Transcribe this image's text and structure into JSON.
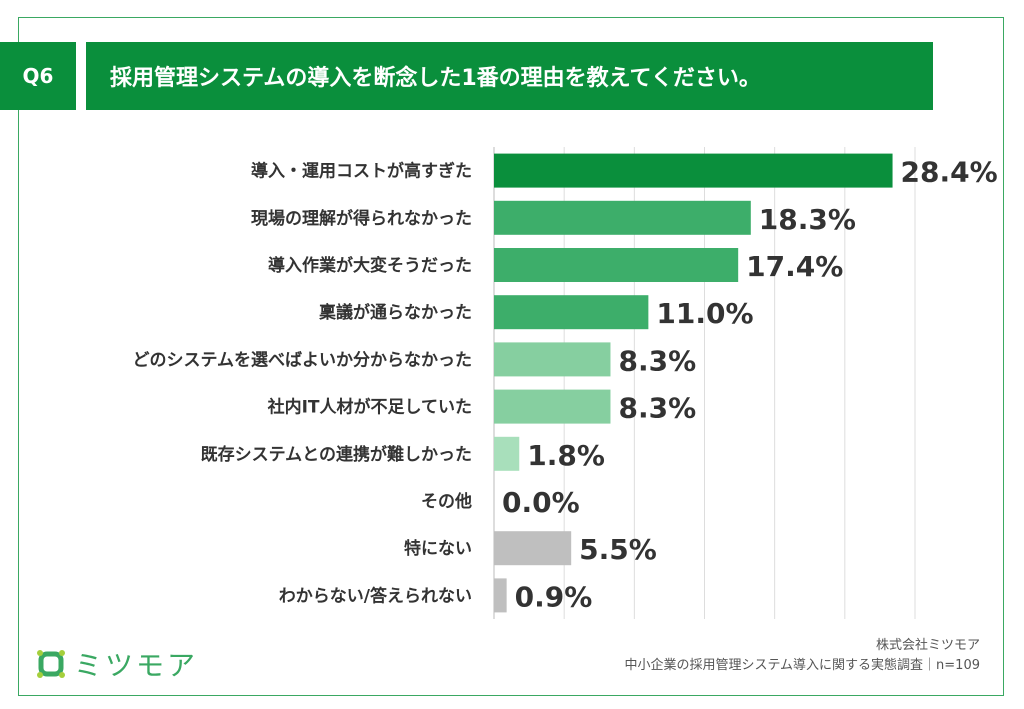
{
  "header": {
    "q_label": "Q6",
    "title": "採用管理システムの導入を断念した1番の理由を教えてください。"
  },
  "chart_data": {
    "type": "bar",
    "orientation": "horizontal",
    "categories": [
      "導入・運用コストが高すぎた",
      "現場の理解が得られなかった",
      "導入作業が大変そうだった",
      "稟議が通らなかった",
      "どのシステムを選べばよいか分からなかった",
      "社内IT人材が不足していた",
      "既存システムとの連携が難しかった",
      "その他",
      "特にない",
      "わからない/答えられない"
    ],
    "values": [
      28.4,
      18.3,
      17.4,
      11.0,
      8.3,
      8.3,
      1.8,
      0.0,
      5.5,
      0.9
    ],
    "data_labels": [
      "28.4%",
      "18.3%",
      "17.4%",
      "11.0%",
      "8.3%",
      "8.3%",
      "1.8%",
      "0.0%",
      "5.5%",
      "0.9%"
    ],
    "colors": [
      "#0a8f3c",
      "#3dae6a",
      "#3dae6a",
      "#3dae6a",
      "#86cfa0",
      "#86cfa0",
      "#a8dfbb",
      "#a8dfbb",
      "#bfbfbf",
      "#bfbfbf"
    ],
    "xlim": [
      0,
      30
    ],
    "grid": true
  },
  "footer": {
    "logo_text": "ミツモア",
    "company": "株式会社ミツモア",
    "source": "中小企業の採用管理システム導入に関する実態調査｜n=109"
  }
}
